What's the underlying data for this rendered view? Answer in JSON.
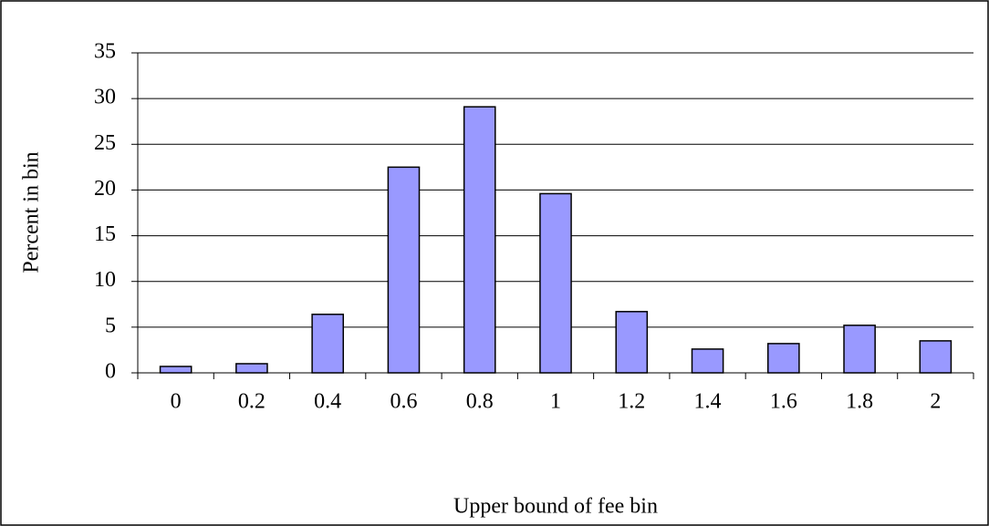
{
  "chart_data": {
    "type": "bar",
    "categories": [
      "0",
      "0.2",
      "0.4",
      "0.6",
      "0.8",
      "1",
      "1.2",
      "1.4",
      "1.6",
      "1.8",
      "2"
    ],
    "values": [
      0.7,
      1.0,
      6.4,
      22.5,
      29.1,
      19.6,
      6.7,
      2.6,
      3.2,
      5.2,
      3.5
    ],
    "color": "#9999ff",
    "x_label": "Upper bound of fee bin",
    "y_label": "Percent in bin",
    "ylim": [
      0,
      35
    ],
    "yticks": [
      0,
      5,
      10,
      15,
      20,
      25,
      30,
      35
    ],
    "grid": true
  }
}
